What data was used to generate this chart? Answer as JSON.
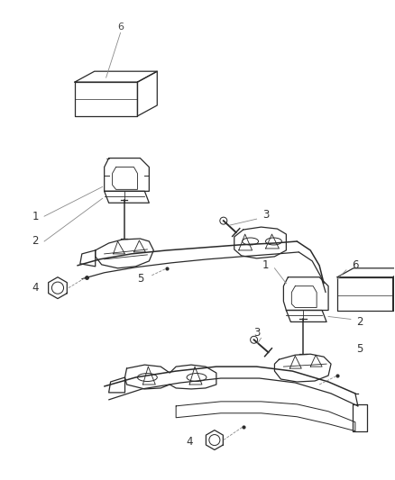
{
  "bg_color": "#ffffff",
  "line_color": "#2a2a2a",
  "leader_color": "#888888",
  "fig_width": 4.38,
  "fig_height": 5.33,
  "dpi": 100
}
